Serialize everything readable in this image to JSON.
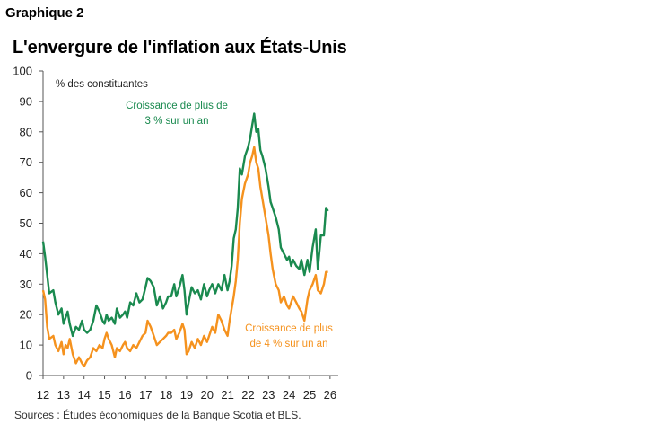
{
  "header": {
    "kicker": "Graphique 2",
    "title": "L'envergure de l'inflation aux États-Unis"
  },
  "footer": {
    "source": "Sources : Études économiques de la Banque Scotia et BLS."
  },
  "colors": {
    "green": "#1a8a4f",
    "orange": "#f5921e",
    "axis": "#555555"
  },
  "chart_data": {
    "type": "line",
    "title": "L'envergure de l'inflation aux États-Unis",
    "ylabel": "% des constituantes",
    "ylim": [
      0,
      100
    ],
    "yticks": [
      0,
      10,
      20,
      30,
      40,
      50,
      60,
      70,
      80,
      90,
      100
    ],
    "xlim": [
      2012,
      2026.4
    ],
    "xticks": [
      {
        "value": 2012,
        "label": "12"
      },
      {
        "value": 2013,
        "label": "13"
      },
      {
        "value": 2014,
        "label": "14"
      },
      {
        "value": 2015,
        "label": "15"
      },
      {
        "value": 2016,
        "label": "16"
      },
      {
        "value": 2017,
        "label": "17"
      },
      {
        "value": 2018,
        "label": "18"
      },
      {
        "value": 2019,
        "label": "19"
      },
      {
        "value": 2020,
        "label": "20"
      },
      {
        "value": 2021,
        "label": "21"
      },
      {
        "value": 2022,
        "label": "22"
      },
      {
        "value": 2023,
        "label": "23"
      },
      {
        "value": 2024,
        "label": "24"
      },
      {
        "value": 2025,
        "label": "25"
      },
      {
        "value": 2026,
        "label": "26"
      }
    ],
    "grid": false,
    "series": [
      {
        "name": "Croissance de plus de 3 % sur un an",
        "annotation": [
          "Croissance de plus de",
          "3 % sur un an"
        ],
        "color": "#1a8a4f",
        "points": [
          [
            2012.0,
            44
          ],
          [
            2012.1,
            39
          ],
          [
            2012.2,
            33
          ],
          [
            2012.3,
            27
          ],
          [
            2012.5,
            28
          ],
          [
            2012.6,
            24
          ],
          [
            2012.75,
            20
          ],
          [
            2012.9,
            22
          ],
          [
            2013.0,
            17
          ],
          [
            2013.1,
            19
          ],
          [
            2013.2,
            21
          ],
          [
            2013.3,
            17
          ],
          [
            2013.45,
            13
          ],
          [
            2013.6,
            16
          ],
          [
            2013.75,
            15
          ],
          [
            2013.9,
            18
          ],
          [
            2014.0,
            15
          ],
          [
            2014.15,
            14
          ],
          [
            2014.3,
            15
          ],
          [
            2014.45,
            18
          ],
          [
            2014.6,
            23
          ],
          [
            2014.75,
            21
          ],
          [
            2014.9,
            18
          ],
          [
            2015.0,
            17
          ],
          [
            2015.1,
            20
          ],
          [
            2015.2,
            18
          ],
          [
            2015.35,
            19
          ],
          [
            2015.5,
            17
          ],
          [
            2015.6,
            22
          ],
          [
            2015.75,
            19
          ],
          [
            2015.9,
            20
          ],
          [
            2016.0,
            21
          ],
          [
            2016.1,
            19
          ],
          [
            2016.25,
            24
          ],
          [
            2016.4,
            23
          ],
          [
            2016.55,
            27
          ],
          [
            2016.7,
            24
          ],
          [
            2016.85,
            25
          ],
          [
            2017.0,
            29
          ],
          [
            2017.1,
            32
          ],
          [
            2017.25,
            31
          ],
          [
            2017.4,
            29
          ],
          [
            2017.55,
            23
          ],
          [
            2017.7,
            26
          ],
          [
            2017.85,
            22
          ],
          [
            2018.0,
            24
          ],
          [
            2018.1,
            26
          ],
          [
            2018.25,
            26
          ],
          [
            2018.4,
            30
          ],
          [
            2018.5,
            26
          ],
          [
            2018.65,
            29
          ],
          [
            2018.8,
            33
          ],
          [
            2018.9,
            28
          ],
          [
            2019.0,
            20
          ],
          [
            2019.1,
            24
          ],
          [
            2019.25,
            29
          ],
          [
            2019.4,
            27
          ],
          [
            2019.55,
            28
          ],
          [
            2019.7,
            25
          ],
          [
            2019.85,
            30
          ],
          [
            2020.0,
            26
          ],
          [
            2020.1,
            28
          ],
          [
            2020.25,
            30
          ],
          [
            2020.4,
            27
          ],
          [
            2020.55,
            30
          ],
          [
            2020.7,
            28
          ],
          [
            2020.85,
            33
          ],
          [
            2021.0,
            28
          ],
          [
            2021.1,
            31
          ],
          [
            2021.2,
            36
          ],
          [
            2021.3,
            45
          ],
          [
            2021.4,
            48
          ],
          [
            2021.5,
            55
          ],
          [
            2021.6,
            68
          ],
          [
            2021.7,
            66
          ],
          [
            2021.85,
            72
          ],
          [
            2022.0,
            75
          ],
          [
            2022.1,
            78
          ],
          [
            2022.2,
            82
          ],
          [
            2022.3,
            86
          ],
          [
            2022.4,
            80
          ],
          [
            2022.5,
            81
          ],
          [
            2022.6,
            74
          ],
          [
            2022.7,
            72
          ],
          [
            2022.85,
            68
          ],
          [
            2023.0,
            62
          ],
          [
            2023.1,
            57
          ],
          [
            2023.2,
            55
          ],
          [
            2023.35,
            52
          ],
          [
            2023.5,
            48
          ],
          [
            2023.6,
            42
          ],
          [
            2023.75,
            40
          ],
          [
            2023.9,
            38
          ],
          [
            2024.0,
            39
          ],
          [
            2024.1,
            36
          ],
          [
            2024.2,
            38
          ],
          [
            2024.35,
            36
          ],
          [
            2024.5,
            35
          ],
          [
            2024.6,
            38
          ],
          [
            2024.75,
            33
          ],
          [
            2024.9,
            38
          ],
          [
            2025.0,
            34
          ],
          [
            2025.15,
            42
          ],
          [
            2025.3,
            48
          ],
          [
            2025.4,
            35
          ],
          [
            2025.55,
            46
          ],
          [
            2025.7,
            46
          ],
          [
            2025.8,
            55
          ],
          [
            2025.9,
            54
          ]
        ]
      },
      {
        "name": "Croissance de plus de 4 % sur un an",
        "annotation": [
          "Croissance de plus",
          "de 4 % sur un an"
        ],
        "color": "#f5921e",
        "points": [
          [
            2012.0,
            28
          ],
          [
            2012.1,
            25
          ],
          [
            2012.2,
            16
          ],
          [
            2012.3,
            12
          ],
          [
            2012.5,
            13
          ],
          [
            2012.6,
            10
          ],
          [
            2012.75,
            8
          ],
          [
            2012.9,
            11
          ],
          [
            2013.0,
            7
          ],
          [
            2013.1,
            10
          ],
          [
            2013.2,
            9
          ],
          [
            2013.3,
            12
          ],
          [
            2013.45,
            7
          ],
          [
            2013.6,
            4
          ],
          [
            2013.75,
            6
          ],
          [
            2013.9,
            4
          ],
          [
            2014.0,
            3
          ],
          [
            2014.15,
            5
          ],
          [
            2014.3,
            6
          ],
          [
            2014.45,
            9
          ],
          [
            2014.6,
            8
          ],
          [
            2014.75,
            10
          ],
          [
            2014.9,
            9
          ],
          [
            2015.0,
            12
          ],
          [
            2015.1,
            14
          ],
          [
            2015.2,
            12
          ],
          [
            2015.35,
            10
          ],
          [
            2015.5,
            6
          ],
          [
            2015.6,
            9
          ],
          [
            2015.75,
            8
          ],
          [
            2015.9,
            10
          ],
          [
            2016.0,
            11
          ],
          [
            2016.1,
            9
          ],
          [
            2016.25,
            8
          ],
          [
            2016.4,
            10
          ],
          [
            2016.55,
            9
          ],
          [
            2016.7,
            11
          ],
          [
            2016.85,
            13
          ],
          [
            2017.0,
            14
          ],
          [
            2017.1,
            18
          ],
          [
            2017.25,
            16
          ],
          [
            2017.4,
            13
          ],
          [
            2017.55,
            10
          ],
          [
            2017.7,
            11
          ],
          [
            2017.85,
            12
          ],
          [
            2018.0,
            13
          ],
          [
            2018.1,
            14
          ],
          [
            2018.25,
            14
          ],
          [
            2018.4,
            15
          ],
          [
            2018.5,
            12
          ],
          [
            2018.65,
            14
          ],
          [
            2018.8,
            17
          ],
          [
            2018.9,
            15
          ],
          [
            2019.0,
            7
          ],
          [
            2019.1,
            8
          ],
          [
            2019.25,
            11
          ],
          [
            2019.4,
            9
          ],
          [
            2019.55,
            12
          ],
          [
            2019.7,
            10
          ],
          [
            2019.85,
            13
          ],
          [
            2020.0,
            11
          ],
          [
            2020.1,
            13
          ],
          [
            2020.25,
            16
          ],
          [
            2020.4,
            14
          ],
          [
            2020.55,
            20
          ],
          [
            2020.7,
            18
          ],
          [
            2020.85,
            15
          ],
          [
            2021.0,
            13
          ],
          [
            2021.1,
            18
          ],
          [
            2021.2,
            22
          ],
          [
            2021.3,
            26
          ],
          [
            2021.4,
            31
          ],
          [
            2021.5,
            38
          ],
          [
            2021.6,
            50
          ],
          [
            2021.7,
            58
          ],
          [
            2021.85,
            63
          ],
          [
            2022.0,
            66
          ],
          [
            2022.1,
            70
          ],
          [
            2022.2,
            72
          ],
          [
            2022.3,
            75
          ],
          [
            2022.4,
            70
          ],
          [
            2022.5,
            68
          ],
          [
            2022.6,
            62
          ],
          [
            2022.7,
            58
          ],
          [
            2022.85,
            52
          ],
          [
            2023.0,
            46
          ],
          [
            2023.1,
            40
          ],
          [
            2023.2,
            35
          ],
          [
            2023.35,
            30
          ],
          [
            2023.5,
            28
          ],
          [
            2023.6,
            24
          ],
          [
            2023.75,
            26
          ],
          [
            2023.9,
            23
          ],
          [
            2024.0,
            22
          ],
          [
            2024.1,
            24
          ],
          [
            2024.2,
            26
          ],
          [
            2024.35,
            24
          ],
          [
            2024.5,
            22
          ],
          [
            2024.6,
            21
          ],
          [
            2024.75,
            18
          ],
          [
            2024.9,
            25
          ],
          [
            2025.0,
            28
          ],
          [
            2025.15,
            30
          ],
          [
            2025.3,
            33
          ],
          [
            2025.4,
            28
          ],
          [
            2025.55,
            27
          ],
          [
            2025.7,
            30
          ],
          [
            2025.8,
            34
          ],
          [
            2025.9,
            34
          ]
        ]
      }
    ]
  }
}
